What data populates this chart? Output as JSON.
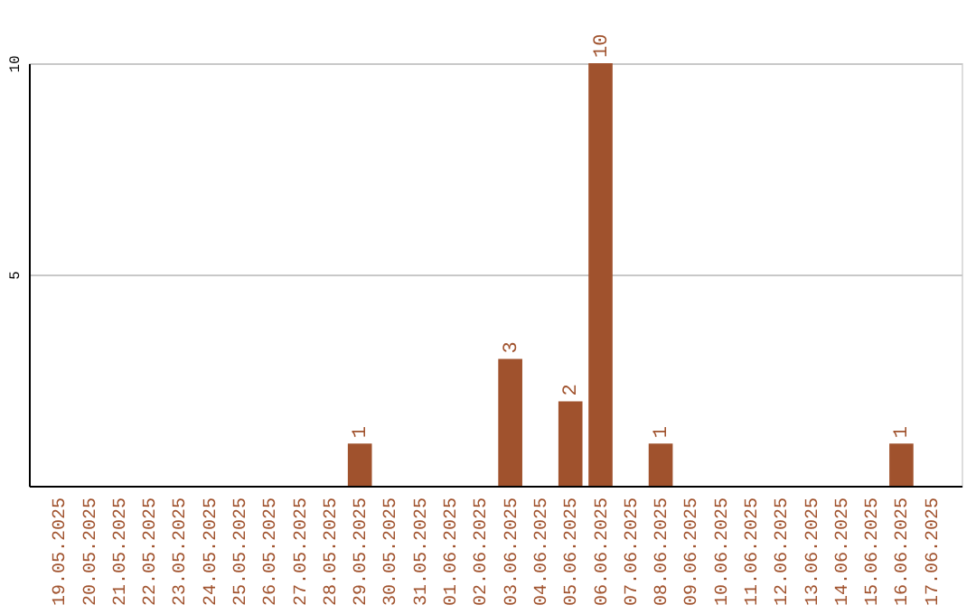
{
  "chart_data": {
    "type": "bar",
    "categories": [
      "19.05.2025",
      "20.05.2025",
      "21.05.2025",
      "22.05.2025",
      "23.05.2025",
      "24.05.2025",
      "25.05.2025",
      "26.05.2025",
      "27.05.2025",
      "28.05.2025",
      "29.05.2025",
      "30.05.2025",
      "31.05.2025",
      "01.06.2025",
      "02.06.2025",
      "03.06.2025",
      "04.06.2025",
      "05.06.2025",
      "06.06.2025",
      "07.06.2025",
      "08.06.2025",
      "09.06.2025",
      "10.06.2025",
      "11.06.2025",
      "12.06.2025",
      "13.06.2025",
      "14.06.2025",
      "15.06.2025",
      "16.06.2025",
      "17.06.2025"
    ],
    "values": [
      0,
      0,
      0,
      0,
      0,
      0,
      0,
      0,
      0,
      0,
      1,
      0,
      0,
      0,
      0,
      3,
      0,
      2,
      10,
      0,
      1,
      0,
      0,
      0,
      0,
      0,
      0,
      0,
      1,
      0
    ],
    "value_labels": [
      null,
      null,
      null,
      null,
      null,
      null,
      null,
      null,
      null,
      null,
      "1",
      null,
      null,
      null,
      null,
      "3",
      null,
      "2",
      "10",
      null,
      "1",
      null,
      null,
      null,
      null,
      null,
      null,
      null,
      "1",
      null
    ],
    "color": "#a0522d",
    "ylim": [
      0,
      10
    ],
    "yticks": [
      5,
      10
    ],
    "grid": "y"
  }
}
